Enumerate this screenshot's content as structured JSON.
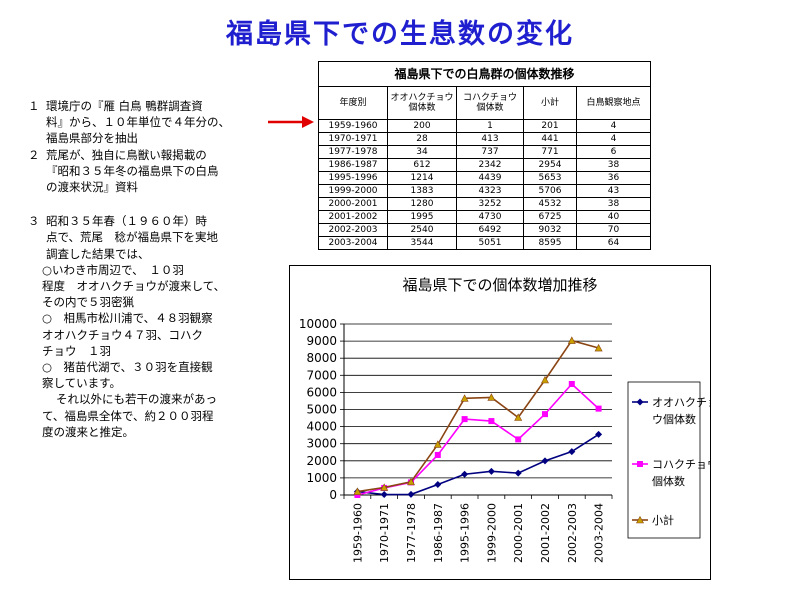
{
  "slide": {
    "title": "福島県下での生息数の変化"
  },
  "text": {
    "p1": {
      "num": "１",
      "lines": [
        "環境庁の『雁 白鳥 鴨群調査資",
        "料』から、１０年単位で４年分の、",
        "福島県部分を抽出"
      ]
    },
    "p2": {
      "num": "２",
      "lines": [
        "荒尾が、独自に鳥獣い報掲載の",
        "『昭和３５年冬の福島県下の白鳥",
        "の渡来状況』資料"
      ]
    },
    "p3": {
      "num": "３",
      "lines": [
        "昭和３５年春（１９６０年）時",
        "点で、荒尾　稔が福島県下を実地",
        "調査した結果では、"
      ]
    },
    "sub1": [
      "○いわき市周辺で、　１０羽",
      "程度　オオハクチョウが渡来して、",
      "その内で５羽密猟"
    ],
    "sub2": [
      "○　相馬市松川浦で、４８羽観察",
      "オオハクチョウ４７羽、コハク",
      "チョウ　１羽"
    ],
    "sub3": [
      "○　猪苗代湖で、３０羽を直接観",
      "察しています。"
    ],
    "sub4": [
      "それ以外にも若干の渡来があっ",
      "て、福島県全体で、約２００羽程",
      "度の渡来と推定。"
    ]
  },
  "table": {
    "caption": "福島県下での白鳥群の個体数推移",
    "headers": [
      "年度別",
      "オオハクチョウ\n個体数",
      "コハクチョウ\n個体数",
      "小計",
      "白鳥観察地点"
    ],
    "rows": [
      [
        "1959-1960",
        "200",
        "1",
        "201",
        "4"
      ],
      [
        "1970-1971",
        "28",
        "413",
        "441",
        "4"
      ],
      [
        "1977-1978",
        "34",
        "737",
        "771",
        "6"
      ],
      [
        "1986-1987",
        "612",
        "2342",
        "2954",
        "38"
      ],
      [
        "1995-1996",
        "1214",
        "4439",
        "5653",
        "36"
      ],
      [
        "1999-2000",
        "1383",
        "4323",
        "5706",
        "43"
      ],
      [
        "2000-2001",
        "1280",
        "3252",
        "4532",
        "38"
      ],
      [
        "2001-2002",
        "1995",
        "4730",
        "6725",
        "40"
      ],
      [
        "2002-2003",
        "2540",
        "6492",
        "9032",
        "70"
      ],
      [
        "2003-2004",
        "3544",
        "5051",
        "8595",
        "64"
      ]
    ]
  },
  "chart_data": {
    "type": "line",
    "title": "福島県下での個体数増加推移",
    "categories": [
      "1959-1960",
      "1970-1971",
      "1977-1978",
      "1986-1987",
      "1995-1996",
      "1999-2000",
      "2000-2001",
      "2001-2002",
      "2002-2003",
      "2003-2004"
    ],
    "ylim": [
      0,
      10000
    ],
    "yticks": [
      "0",
      "1000",
      "2000",
      "3000",
      "4000",
      "5000",
      "6000",
      "7000",
      "8000",
      "9000",
      "10000"
    ],
    "grid": true,
    "legend_position": "right",
    "series": [
      {
        "name": "オオハクチョウ個体数",
        "legend_lines": [
          "オオハクチョ",
          "ウ個体数"
        ],
        "color": "#000080",
        "marker": "diamond",
        "values": [
          200,
          28,
          34,
          612,
          1214,
          1383,
          1280,
          1995,
          2540,
          3544
        ]
      },
      {
        "name": "コハクチョウ個体数",
        "legend_lines": [
          "コハクチョウ",
          "個体数"
        ],
        "color": "#ff00ff",
        "marker": "square",
        "values": [
          1,
          413,
          737,
          2342,
          4439,
          4323,
          3252,
          4730,
          6492,
          5051
        ]
      },
      {
        "name": "小計",
        "legend_lines": [
          "小計"
        ],
        "color": "#8b4513",
        "marker": "triangle",
        "values": [
          201,
          441,
          771,
          2954,
          5653,
          5706,
          4532,
          6725,
          9032,
          8595
        ]
      }
    ]
  },
  "colors": {
    "title": "#1f1fd0",
    "arrow": "#e00000"
  }
}
